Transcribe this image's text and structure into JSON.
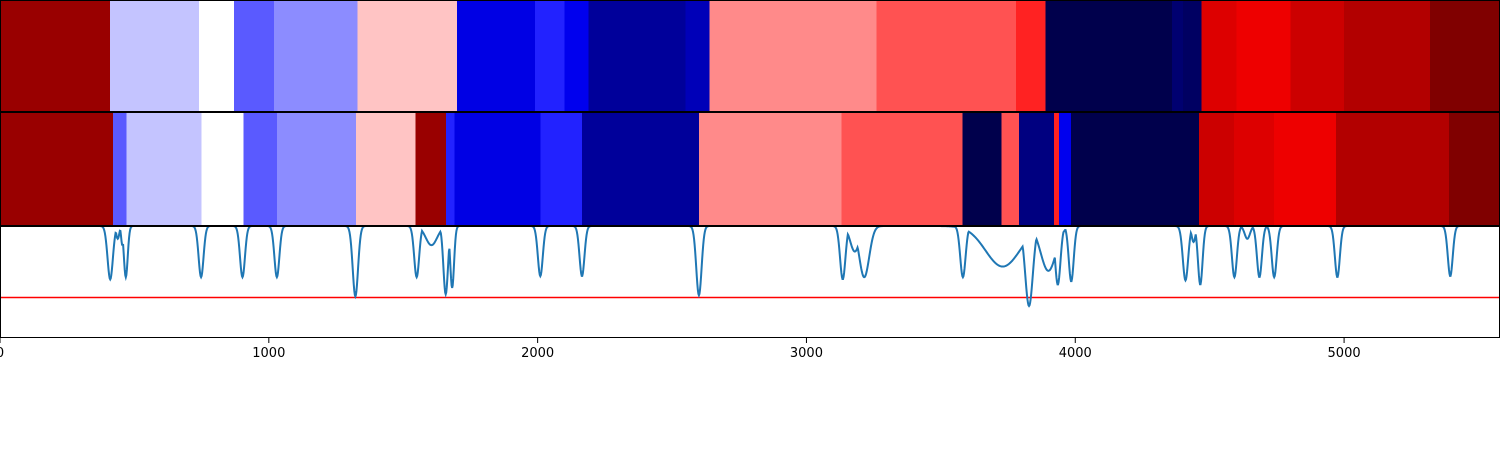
{
  "chart_data": [
    {
      "type": "heatmap",
      "x_range": [
        0,
        5580
      ],
      "segments": [
        {
          "start": 0,
          "end": 410,
          "color": "#990000"
        },
        {
          "start": 410,
          "end": 740,
          "color": "#c4c4ff"
        },
        {
          "start": 740,
          "end": 870,
          "color": "#ffffff"
        },
        {
          "start": 870,
          "end": 1020,
          "color": "#5a5aff"
        },
        {
          "start": 1020,
          "end": 1330,
          "color": "#8c8cff"
        },
        {
          "start": 1330,
          "end": 1700,
          "color": "#ffc4c4"
        },
        {
          "start": 1700,
          "end": 1990,
          "color": "#0000e4"
        },
        {
          "start": 1990,
          "end": 2100,
          "color": "#2222ff"
        },
        {
          "start": 2100,
          "end": 2190,
          "color": "#0000ee"
        },
        {
          "start": 2190,
          "end": 2550,
          "color": "#00009a"
        },
        {
          "start": 2550,
          "end": 2640,
          "color": "#0000b8"
        },
        {
          "start": 2640,
          "end": 3260,
          "color": "#ff8a8a"
        },
        {
          "start": 3260,
          "end": 3780,
          "color": "#ff5252"
        },
        {
          "start": 3780,
          "end": 3890,
          "color": "#ff2222"
        },
        {
          "start": 3890,
          "end": 4360,
          "color": "#00004c"
        },
        {
          "start": 4360,
          "end": 4400,
          "color": "#000070"
        },
        {
          "start": 4400,
          "end": 4470,
          "color": "#000062"
        },
        {
          "start": 4470,
          "end": 4600,
          "color": "#dd0000"
        },
        {
          "start": 4600,
          "end": 4800,
          "color": "#ee0000"
        },
        {
          "start": 4800,
          "end": 5000,
          "color": "#cc0000"
        },
        {
          "start": 5000,
          "end": 5320,
          "color": "#b20000"
        },
        {
          "start": 5320,
          "end": 5580,
          "color": "#800000"
        }
      ]
    },
    {
      "type": "heatmap",
      "x_range": [
        0,
        5580
      ],
      "segments": [
        {
          "start": 0,
          "end": 420,
          "color": "#990000"
        },
        {
          "start": 420,
          "end": 470,
          "color": "#5a5aff"
        },
        {
          "start": 470,
          "end": 750,
          "color": "#c4c4ff"
        },
        {
          "start": 750,
          "end": 905,
          "color": "#ffffff"
        },
        {
          "start": 905,
          "end": 1030,
          "color": "#5a5aff"
        },
        {
          "start": 1030,
          "end": 1325,
          "color": "#8c8cff"
        },
        {
          "start": 1325,
          "end": 1545,
          "color": "#ffc4c4"
        },
        {
          "start": 1545,
          "end": 1660,
          "color": "#990000"
        },
        {
          "start": 1660,
          "end": 1690,
          "color": "#2222ff"
        },
        {
          "start": 1690,
          "end": 2010,
          "color": "#0000e4"
        },
        {
          "start": 2010,
          "end": 2165,
          "color": "#2222ff"
        },
        {
          "start": 2165,
          "end": 2600,
          "color": "#00009a"
        },
        {
          "start": 2600,
          "end": 3130,
          "color": "#ff8a8a"
        },
        {
          "start": 3130,
          "end": 3580,
          "color": "#ff5252"
        },
        {
          "start": 3580,
          "end": 3725,
          "color": "#00004c"
        },
        {
          "start": 3725,
          "end": 3790,
          "color": "#ff5252"
        },
        {
          "start": 3790,
          "end": 3920,
          "color": "#000080"
        },
        {
          "start": 3920,
          "end": 3940,
          "color": "#ff2222"
        },
        {
          "start": 3940,
          "end": 3985,
          "color": "#0000ee"
        },
        {
          "start": 3985,
          "end": 4460,
          "color": "#00004c"
        },
        {
          "start": 4460,
          "end": 4590,
          "color": "#cc0000"
        },
        {
          "start": 4590,
          "end": 4740,
          "color": "#dd0000"
        },
        {
          "start": 4740,
          "end": 4970,
          "color": "#ee0000"
        },
        {
          "start": 4970,
          "end": 5390,
          "color": "#b20000"
        },
        {
          "start": 5390,
          "end": 5580,
          "color": "#800000"
        }
      ]
    },
    {
      "type": "line",
      "x_range": [
        0,
        5580
      ],
      "y_range": [
        -0.05,
        1.0
      ],
      "line_color": "#1f77b4",
      "threshold": 0.33,
      "threshold_color": "#ff0000",
      "x_ticks": [
        "0",
        "1000",
        "2000",
        "3000",
        "4000",
        "5000"
      ],
      "x_tick_values": [
        0,
        1000,
        2000,
        3000,
        4000,
        5000
      ],
      "baseline": 1.0,
      "dips": [
        {
          "x": 410,
          "min": 0.5,
          "w": 14
        },
        {
          "x": 438,
          "min": 0.88,
          "w": 8
        },
        {
          "x": 455,
          "min": 0.82,
          "w": 6
        },
        {
          "x": 468,
          "min": 0.52,
          "w": 10
        },
        {
          "x": 748,
          "min": 0.52,
          "w": 13
        },
        {
          "x": 902,
          "min": 0.52,
          "w": 13
        },
        {
          "x": 1030,
          "min": 0.52,
          "w": 13
        },
        {
          "x": 1322,
          "min": 0.34,
          "w": 14
        },
        {
          "x": 1550,
          "min": 0.52,
          "w": 13
        },
        {
          "x": 1605,
          "min": 0.82,
          "w": 30
        },
        {
          "x": 1658,
          "min": 0.36,
          "w": 12
        },
        {
          "x": 1682,
          "min": 0.42,
          "w": 10
        },
        {
          "x": 2010,
          "min": 0.53,
          "w": 13
        },
        {
          "x": 2165,
          "min": 0.53,
          "w": 13
        },
        {
          "x": 2600,
          "min": 0.35,
          "w": 14
        },
        {
          "x": 3135,
          "min": 0.5,
          "w": 14
        },
        {
          "x": 3180,
          "min": 0.76,
          "w": 24
        },
        {
          "x": 3215,
          "min": 0.52,
          "w": 26
        },
        {
          "x": 3582,
          "min": 0.52,
          "w": 14
        },
        {
          "x": 3730,
          "min": 0.62,
          "w": 90
        },
        {
          "x": 3828,
          "min": 0.25,
          "w": 20
        },
        {
          "x": 3900,
          "min": 0.58,
          "w": 40
        },
        {
          "x": 3935,
          "min": 0.45,
          "w": 14
        },
        {
          "x": 3985,
          "min": 0.48,
          "w": 13
        },
        {
          "x": 4410,
          "min": 0.49,
          "w": 14
        },
        {
          "x": 4440,
          "min": 0.85,
          "w": 10
        },
        {
          "x": 4465,
          "min": 0.45,
          "w": 12
        },
        {
          "x": 4592,
          "min": 0.52,
          "w": 13
        },
        {
          "x": 4640,
          "min": 0.88,
          "w": 14
        },
        {
          "x": 4685,
          "min": 0.52,
          "w": 13
        },
        {
          "x": 4740,
          "min": 0.52,
          "w": 13
        },
        {
          "x": 4975,
          "min": 0.52,
          "w": 13
        },
        {
          "x": 5395,
          "min": 0.53,
          "w": 13
        }
      ]
    }
  ]
}
